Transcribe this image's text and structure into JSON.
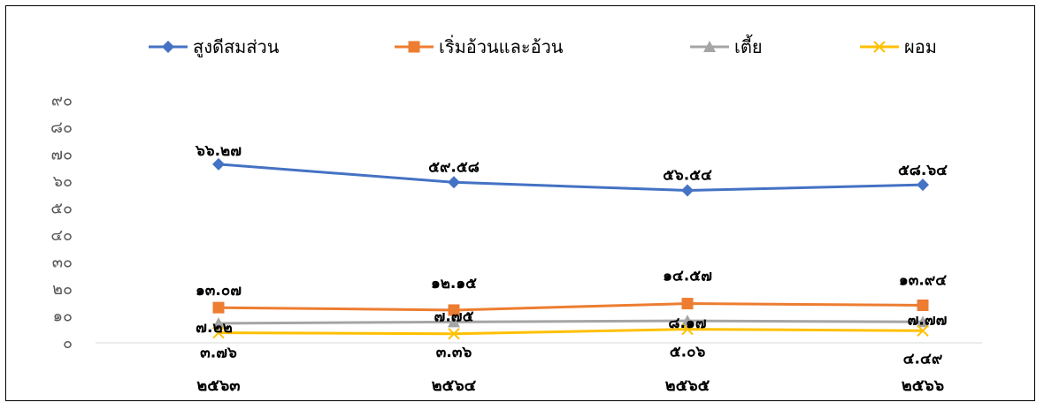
{
  "chart_data": {
    "type": "line",
    "title": "",
    "xlabel": "",
    "ylabel": "",
    "categories": [
      "๒๕๖๓",
      "๒๕๖๔",
      "๒๕๖๕",
      "๒๕๖๖"
    ],
    "ylim": [
      0,
      90
    ],
    "yticks": [
      0,
      10,
      20,
      30,
      40,
      50,
      60,
      70,
      80,
      90
    ],
    "ytick_labels": [
      "๐",
      "๑๐",
      "๒๐",
      "๓๐",
      "๔๐",
      "๕๐",
      "๖๐",
      "๗๐",
      "๘๐",
      "๙๐"
    ],
    "grid": false,
    "legend_position": "top",
    "series": [
      {
        "name": "สูงดีสมส่วน",
        "color": "#4472C4",
        "marker": "diamond",
        "values": [
          66.27,
          59.58,
          56.54,
          58.64
        ],
        "labels": [
          "๖๖.๒๗",
          "๕๙.๕๘",
          "๕๖.๕๔",
          "๕๘.๖๔"
        ]
      },
      {
        "name": "เริ่มอ้วนและอ้วน",
        "color": "#ED7D31",
        "marker": "square",
        "values": [
          13.07,
          12.15,
          14.57,
          13.94
        ],
        "labels": [
          "๑๓.๐๗",
          "๑๒.๑๕",
          "๑๔.๕๗",
          "๑๓.๙๔"
        ]
      },
      {
        "name": "เตี้ย",
        "color": "#A5A5A5",
        "marker": "triangle",
        "values": [
          7.22,
          7.75,
          8.17,
          7.77
        ],
        "labels": [
          "๗.๒๒",
          "๗.๗๕",
          "๘.๑๗",
          "๗.๗๗"
        ]
      },
      {
        "name": "ผอม",
        "color": "#FFC000",
        "marker": "x",
        "values": [
          3.76,
          3.36,
          5.06,
          4.49
        ],
        "labels": [
          "๓.๗๖",
          "๓.๓๖",
          "๕.๐๖",
          "๔.๔๙"
        ]
      }
    ]
  }
}
